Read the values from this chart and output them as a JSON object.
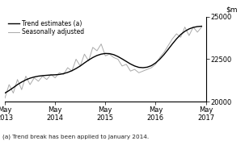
{
  "footnote": "(a) Trend break has been applied to January 2014.",
  "ylim": [
    20000,
    25000
  ],
  "yticks": [
    20000,
    22500,
    25000
  ],
  "legend_entries": [
    "Trend estimates (a)",
    "Seasonally adjusted"
  ],
  "trend_color": "#000000",
  "seasonal_color": "#aaaaaa",
  "background_color": "#ffffff",
  "x_tick_labels": [
    "May\n2013",
    "May\n2014",
    "May\n2015",
    "May\n2016",
    "May\n2017"
  ],
  "x_tick_positions": [
    0,
    12,
    24,
    36,
    48
  ],
  "n_points": 48,
  "trend_data": [
    20500,
    20650,
    20820,
    21000,
    21150,
    21280,
    21380,
    21450,
    21500,
    21530,
    21550,
    21570,
    21580,
    21600,
    21650,
    21720,
    21820,
    21950,
    22100,
    22280,
    22450,
    22600,
    22720,
    22800,
    22840,
    22830,
    22770,
    22660,
    22520,
    22370,
    22220,
    22100,
    22020,
    22000,
    22030,
    22120,
    22280,
    22500,
    22770,
    23080,
    23400,
    23700,
    23960,
    24150,
    24290,
    24380,
    24430,
    24450
  ],
  "seasonal_data": [
    20200,
    21000,
    20500,
    21300,
    20700,
    21500,
    21000,
    21400,
    21200,
    21500,
    21300,
    21600,
    21400,
    21700,
    21600,
    22000,
    21800,
    22500,
    22100,
    22800,
    22400,
    23200,
    23000,
    23400,
    22700,
    22800,
    22600,
    22500,
    22100,
    22200,
    21800,
    21900,
    21700,
    21800,
    21900,
    22000,
    22200,
    22600,
    22900,
    23300,
    23700,
    24000,
    23800,
    24400,
    23900,
    24400,
    24100,
    24400
  ]
}
